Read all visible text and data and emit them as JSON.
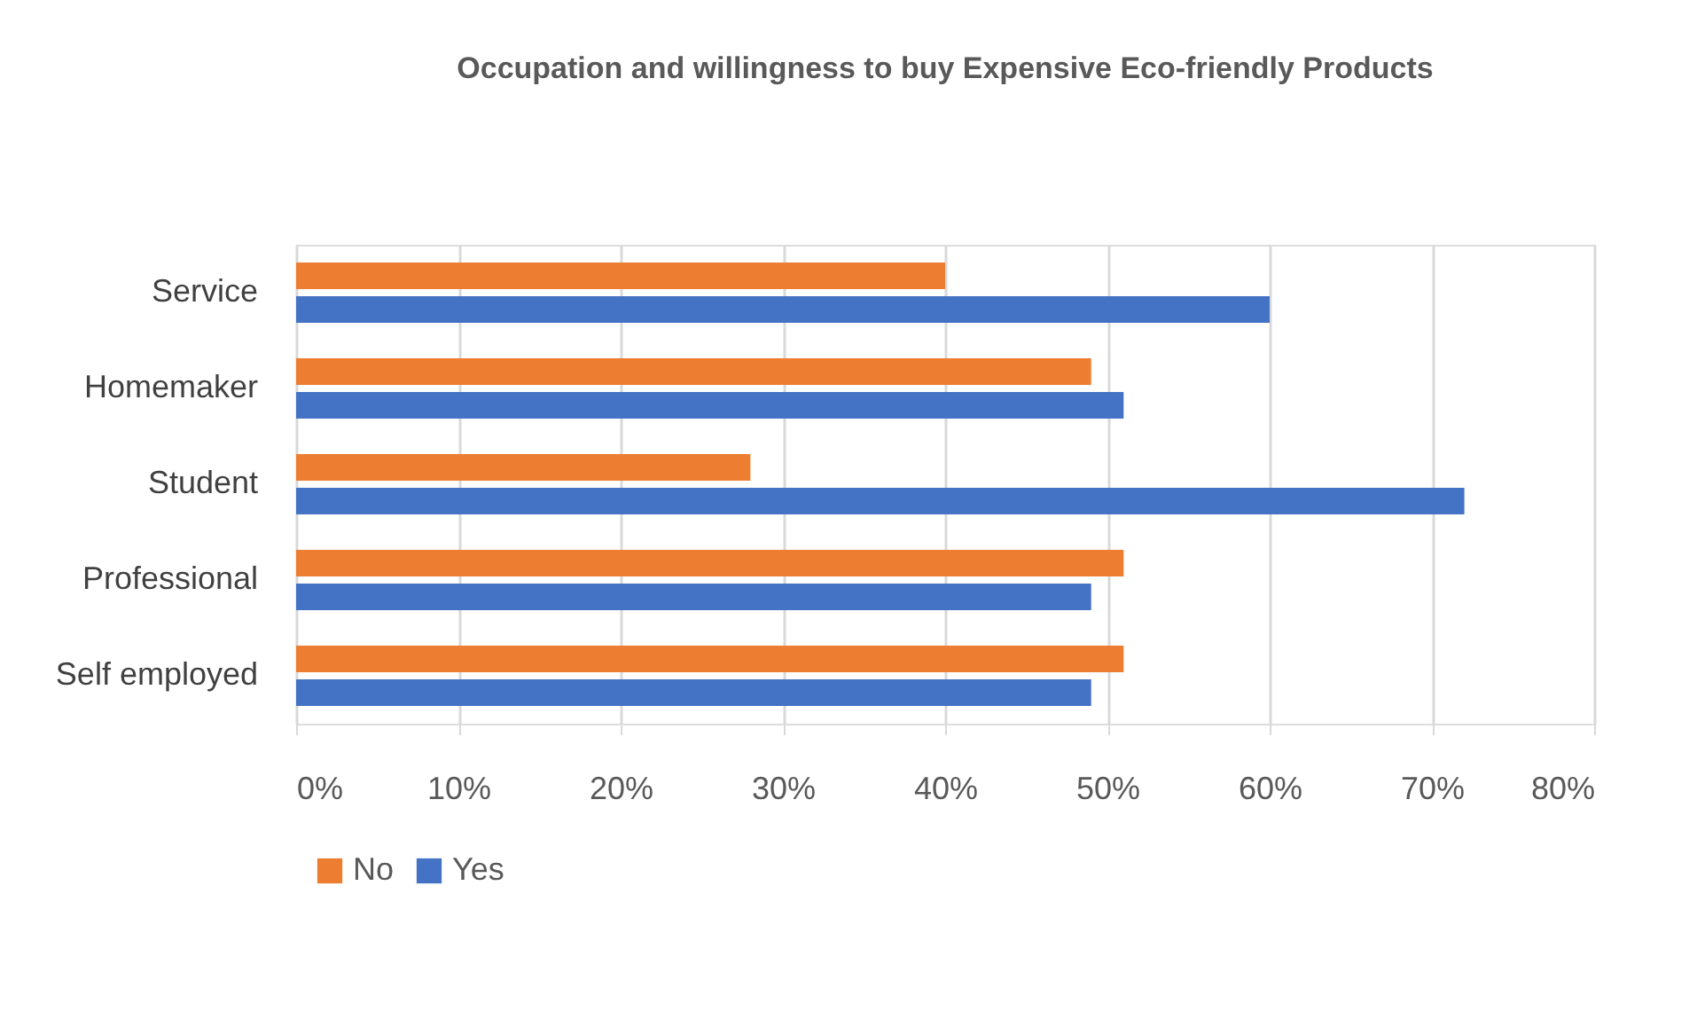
{
  "chart_data": {
    "type": "bar",
    "orientation": "horizontal",
    "title": "Occupation and willingness to buy Expensive Eco-friendly  Products",
    "categories": [
      "Service",
      "Homemaker",
      "Student",
      "Professional",
      "Self employed"
    ],
    "series": [
      {
        "name": "No",
        "color": "#ed7d31",
        "values": [
          40,
          49,
          28,
          51,
          51
        ]
      },
      {
        "name": "Yes",
        "color": "#4472c4",
        "values": [
          60,
          51,
          72,
          49,
          49
        ]
      }
    ],
    "xlim": [
      0,
      80
    ],
    "xticks": [
      {
        "value": 0,
        "label": "0%"
      },
      {
        "value": 10,
        "label": "10%"
      },
      {
        "value": 20,
        "label": "20%"
      },
      {
        "value": 30,
        "label": "30%"
      },
      {
        "value": 40,
        "label": "40%"
      },
      {
        "value": 50,
        "label": "50%"
      },
      {
        "value": 60,
        "label": "60%"
      },
      {
        "value": 70,
        "label": "70%"
      },
      {
        "value": 80,
        "label": "80%"
      }
    ],
    "grid": "x",
    "legend": "bottom"
  }
}
